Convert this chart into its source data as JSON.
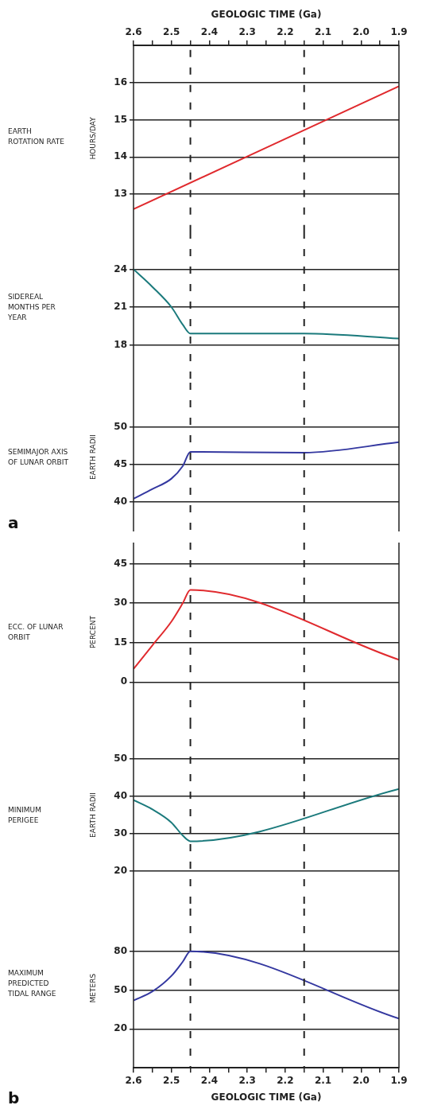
{
  "chart_data": [
    {
      "type": "line",
      "annotations": [
        "EARTH ROTATION RATE"
      ],
      "ylabel": "HOURS/DAY",
      "xlim": [
        2.6,
        1.9
      ],
      "tick_labels": "y",
      "x2label": "GEOLOGIC TIME (Ga)",
      "x2lim": [
        2.6,
        1.9
      ],
      "x2ticks": [
        2.6,
        {
          "value": 2.55,
          "label": null
        },
        2.5,
        {
          "value": 2.45,
          "label": null
        },
        2.4,
        {
          "value": 2.35,
          "label": null
        },
        2.3,
        {
          "value": 2.25,
          "label": null
        },
        2.2,
        {
          "value": 2.15,
          "label": null
        },
        2.1,
        {
          "value": 2.05,
          "label": null
        },
        {
          "value": 2,
          "label": "2.0"
        },
        {
          "value": 1.95,
          "label": null
        },
        1.9
      ],
      "ylim": [
        12,
        17
      ],
      "yticks": [
        13,
        14,
        15,
        16
      ],
      "grid": "y",
      "x": [
        2.6,
        1.9
      ],
      "values": [
        12.6,
        15.9
      ],
      "color": "#e02a2e",
      "ref_lines": [
        {
          "axis": "x",
          "value": 2.45,
          "line_style": "dashed"
        },
        {
          "axis": "x",
          "value": 2.15,
          "line_style": "dashed"
        }
      ]
    },
    {
      "type": "line",
      "annotations": [
        "SIDEREAL MONTHS PER YEAR"
      ],
      "xlim": [
        2.6,
        1.9
      ],
      "tick_labels": "y",
      "ylim": [
        15,
        27
      ],
      "yticks": [
        18,
        21,
        24
      ],
      "grid": "y",
      "x": [
        2.6,
        2.55,
        2.5,
        2.47,
        2.45,
        2.15,
        1.9
      ],
      "values": [
        24,
        22.6,
        21,
        19.6,
        18.9,
        18.9,
        18.5
      ],
      "color": "#1b7a7c",
      "ref_lines": [
        {
          "axis": "x",
          "value": 2.45,
          "line_style": "dashed"
        },
        {
          "axis": "x",
          "value": 2.15,
          "line_style": "dashed"
        }
      ]
    },
    {
      "type": "line",
      "annotations": [
        "SEMIMAJOR AXIS OF LUNAR ORBIT",
        "a"
      ],
      "ylabel": "EARTH RADII",
      "xlim": [
        2.6,
        1.9
      ],
      "tick_labels": "y",
      "ylim": [
        36,
        56
      ],
      "yticks": [
        40,
        45,
        50
      ],
      "grid": "y",
      "x": [
        2.6,
        2.55,
        2.5,
        2.47,
        2.45,
        2.15,
        1.9
      ],
      "values": [
        40.4,
        41.7,
        43.1,
        44.8,
        46.7,
        46.6,
        48
      ],
      "color": "#3438a0",
      "ref_lines": [
        {
          "axis": "x",
          "value": 2.45,
          "line_style": "dashed"
        },
        {
          "axis": "x",
          "value": 2.15,
          "line_style": "dashed"
        }
      ]
    },
    {
      "type": "line",
      "annotations": [
        "ECC. OF LUNAR ORBIT"
      ],
      "ylabel": "PERCENT",
      "xlim": [
        2.6,
        1.9
      ],
      "tick_labels": "y",
      "ylim": [
        -15,
        53
      ],
      "yticks": [
        0,
        15,
        30,
        45
      ],
      "grid": "y",
      "x": [
        2.6,
        2.55,
        2.5,
        2.47,
        2.45,
        1.9
      ],
      "values": [
        5,
        14,
        23,
        30,
        35,
        8.5
      ],
      "color": "#e02a2e",
      "ref_lines": [
        {
          "axis": "x",
          "value": 2.45,
          "line_style": "dashed"
        },
        {
          "axis": "x",
          "value": 2.15,
          "line_style": "dashed"
        }
      ]
    },
    {
      "type": "line",
      "annotations": [
        "MINIMUM PERIGEE"
      ],
      "ylabel": "EARTH RADII",
      "xlim": [
        2.6,
        1.9
      ],
      "tick_labels": "y",
      "ylim": [
        10,
        60
      ],
      "yticks": [
        20,
        30,
        40,
        50
      ],
      "grid": "y",
      "x": [
        2.6,
        2.55,
        2.5,
        2.47,
        2.45,
        1.9
      ],
      "values": [
        39,
        36.5,
        33,
        29.5,
        28,
        42
      ],
      "color": "#1b7a7c",
      "ref_lines": [
        {
          "axis": "x",
          "value": 2.45,
          "line_style": "dashed"
        },
        {
          "axis": "x",
          "value": 2.15,
          "line_style": "dashed"
        }
      ]
    },
    {
      "type": "line",
      "annotations": [
        "MAXIMUM PREDICTED TIDAL RANGE",
        "b"
      ],
      "ylabel": "METERS",
      "xlabel": "GEOLOGIC TIME (Ga)",
      "xlim": [
        2.6,
        1.9
      ],
      "xticks": [
        2.6,
        {
          "value": 2.55,
          "label": null
        },
        2.5,
        {
          "value": 2.45,
          "label": null
        },
        2.4,
        {
          "value": 2.35,
          "label": null
        },
        2.3,
        {
          "value": 2.25,
          "label": null
        },
        2.2,
        {
          "value": 2.15,
          "label": null
        },
        2.1,
        {
          "value": 2.05,
          "label": null
        },
        {
          "value": 2,
          "label": "2.0"
        },
        {
          "value": 1.95,
          "label": null
        },
        1.9
      ],
      "ylim": [
        -10,
        113
      ],
      "yticks": [
        20,
        50,
        80
      ],
      "grid": "y",
      "x": [
        2.6,
        2.55,
        2.5,
        2.47,
        2.45,
        1.9
      ],
      "values": [
        42,
        49,
        61,
        72,
        80,
        28
      ],
      "color": "#3438a0",
      "ref_lines": [
        {
          "axis": "x",
          "value": 2.45,
          "line_style": "dashed"
        },
        {
          "axis": "x",
          "value": 2.15,
          "line_style": "dashed"
        }
      ]
    }
  ]
}
